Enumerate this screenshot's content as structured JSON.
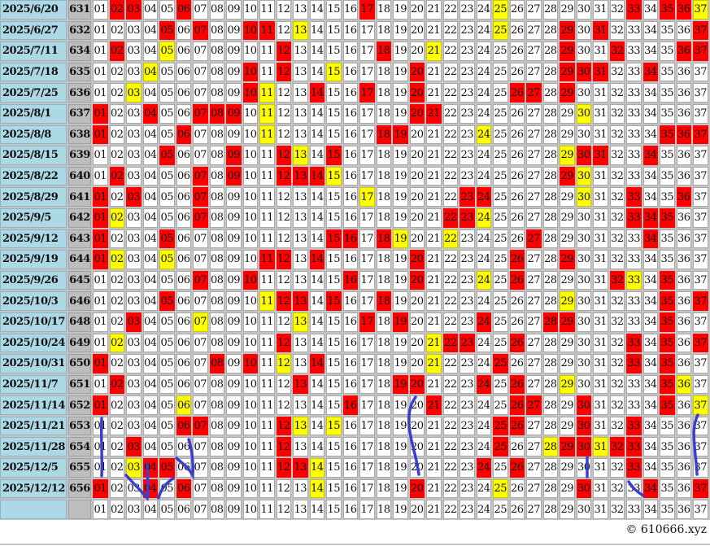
{
  "numbers": [
    "01",
    "02",
    "03",
    "04",
    "05",
    "06",
    "07",
    "08",
    "09",
    "10",
    "11",
    "12",
    "13",
    "14",
    "15",
    "16",
    "17",
    "18",
    "19",
    "20",
    "21",
    "22",
    "23",
    "24",
    "25",
    "26",
    "27",
    "28",
    "29",
    "30",
    "31",
    "32",
    "33",
    "34",
    "35",
    "36",
    "37"
  ],
  "colors": {
    "hit": "#ff0000",
    "special": "#ffff00",
    "date_bg": "#add8e6",
    "issue_bg": "#bdbdbd",
    "annotation": "#3a3fcf"
  },
  "rows": [
    {
      "date": "2025/6/20",
      "issue": "631",
      "red": [
        2,
        3,
        6,
        17,
        33,
        35,
        36
      ],
      "yellow": [
        25,
        37
      ]
    },
    {
      "date": "2025/6/27",
      "issue": "632",
      "red": [
        5,
        7,
        10,
        11,
        29,
        31,
        37
      ],
      "yellow": [
        13,
        25
      ]
    },
    {
      "date": "2025/7/11",
      "issue": "634",
      "red": [
        2,
        12,
        18,
        29,
        32,
        36,
        37
      ],
      "yellow": [
        5,
        21
      ]
    },
    {
      "date": "2025/7/18",
      "issue": "635",
      "red": [
        10,
        12,
        20,
        29,
        30,
        31,
        34
      ],
      "yellow": [
        4,
        15
      ]
    },
    {
      "date": "2025/7/25",
      "issue": "636",
      "red": [
        10,
        14,
        17,
        20,
        26,
        27,
        29
      ],
      "yellow": [
        3,
        11
      ]
    },
    {
      "date": "2025/8/1",
      "issue": "637",
      "red": [
        1,
        4,
        7,
        8,
        9,
        20,
        21
      ],
      "yellow": [
        11,
        30
      ]
    },
    {
      "date": "2025/8/8",
      "issue": "638",
      "red": [
        1,
        6,
        18,
        19,
        35,
        36,
        37
      ],
      "yellow": [
        11,
        24
      ]
    },
    {
      "date": "2025/8/15",
      "issue": "639",
      "red": [
        5,
        9,
        12,
        15,
        30,
        31,
        34
      ],
      "yellow": [
        13,
        29
      ]
    },
    {
      "date": "2025/8/22",
      "issue": "640",
      "red": [
        2,
        7,
        9,
        12,
        13,
        14,
        29
      ],
      "yellow": [
        15,
        30
      ]
    },
    {
      "date": "2025/8/29",
      "issue": "641",
      "red": [
        1,
        3,
        7,
        23,
        24,
        33,
        36
      ],
      "yellow": [
        17,
        30
      ]
    },
    {
      "date": "2025/9/5",
      "issue": "642",
      "red": [
        1,
        7,
        22,
        23,
        33,
        34,
        35
      ],
      "yellow": [
        2,
        24
      ]
    },
    {
      "date": "2025/9/12",
      "issue": "643",
      "red": [
        1,
        5,
        15,
        16,
        18,
        27,
        34
      ],
      "yellow": [
        19,
        22
      ]
    },
    {
      "date": "2025/9/19",
      "issue": "644",
      "red": [
        1,
        11,
        12,
        14,
        20,
        26,
        29
      ],
      "yellow": [
        2,
        5
      ]
    },
    {
      "date": "2025/9/26",
      "issue": "645",
      "red": [
        7,
        10,
        16,
        20,
        26,
        32,
        35
      ],
      "yellow": [
        24,
        33
      ]
    },
    {
      "date": "2025/10/3",
      "issue": "646",
      "red": [
        5,
        12,
        13,
        15,
        18,
        35,
        37
      ],
      "yellow": [
        11,
        29
      ]
    },
    {
      "date": "2025/10/17",
      "issue": "648",
      "red": [
        3,
        17,
        19,
        24,
        28,
        29,
        35
      ],
      "yellow": [
        7,
        13
      ]
    },
    {
      "date": "2025/10/24",
      "issue": "649",
      "red": [
        12,
        22,
        23,
        26,
        33,
        35,
        37
      ],
      "yellow": [
        2,
        21
      ]
    },
    {
      "date": "2025/10/31",
      "issue": "650",
      "red": [
        1,
        8,
        10,
        14,
        25,
        33,
        35
      ],
      "yellow": [
        12,
        21
      ]
    },
    {
      "date": "2025/11/7",
      "issue": "651",
      "red": [
        2,
        13,
        19,
        20,
        24,
        26,
        35
      ],
      "yellow": [
        29,
        36
      ]
    },
    {
      "date": "2025/11/14",
      "issue": "652",
      "red": [
        1,
        16,
        21,
        26,
        27,
        30,
        35
      ],
      "yellow": [
        6,
        37
      ]
    },
    {
      "date": "2025/11/21",
      "issue": "653",
      "red": [
        6,
        7,
        12,
        25,
        26,
        30,
        33
      ],
      "yellow": [
        13,
        15
      ]
    },
    {
      "date": "2025/11/28",
      "issue": "654",
      "red": [
        3,
        12,
        25,
        29,
        30,
        32,
        33
      ],
      "yellow": [
        28,
        31
      ]
    },
    {
      "date": "2025/12/5",
      "issue": "655",
      "red": [
        4,
        5,
        12,
        13,
        24,
        26,
        33
      ],
      "yellow": [
        3,
        14
      ]
    },
    {
      "date": "2025/12/12",
      "issue": "656",
      "red": [
        1,
        4,
        6,
        20,
        30,
        34,
        37
      ],
      "yellow": [
        14,
        25
      ]
    },
    {
      "date": "",
      "issue": "",
      "red": [],
      "yellow": []
    }
  ],
  "footer": {
    "copyright": "© 610666.xyz"
  }
}
